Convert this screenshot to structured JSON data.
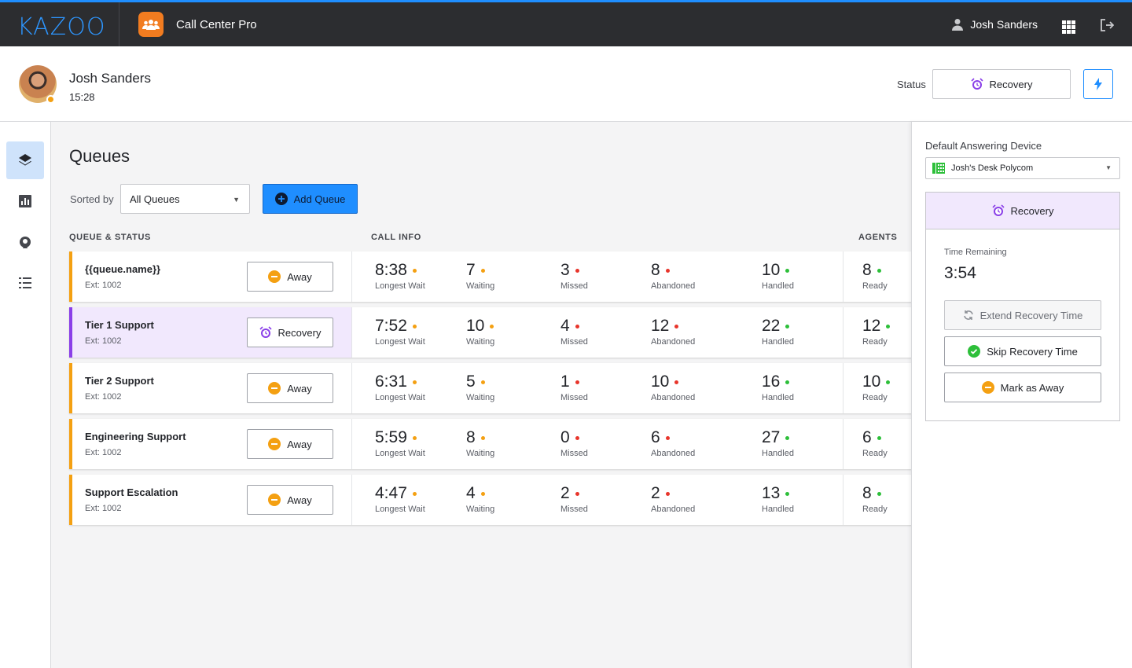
{
  "topbar": {
    "logo": "KAZOO",
    "app_name": "Call Center Pro",
    "user_name": "Josh Sanders"
  },
  "agent": {
    "name": "Josh Sanders",
    "time": "15:28",
    "presence_color": "#f4a012",
    "status_label": "Status",
    "status_value": "Recovery"
  },
  "sidebar": {
    "items": [
      "queues",
      "reports",
      "agents",
      "tasks"
    ]
  },
  "main": {
    "title": "Queues",
    "sorted_by_label": "Sorted by",
    "sort_value": "All Queues",
    "add_queue_label": "Add Queue",
    "columns": {
      "queue_status": "QUEUE & STATUS",
      "call_info": "CALL INFO",
      "agents": "AGENTS"
    },
    "stat_labels": {
      "longest_wait": "Longest Wait",
      "waiting": "Waiting",
      "missed": "Missed",
      "abandoned": "Abandoned",
      "handled": "Handled",
      "ready": "Ready"
    },
    "queues": [
      {
        "name": "{{queue.name}}",
        "ext": "Ext: 1002",
        "status": "Away",
        "longest_wait": "8:38",
        "waiting": "7",
        "missed": "3",
        "abandoned": "8",
        "handled": "10",
        "ready": "8"
      },
      {
        "name": "Tier 1 Support",
        "ext": "Ext: 1002",
        "status": "Recovery",
        "longest_wait": "7:52",
        "waiting": "10",
        "missed": "4",
        "abandoned": "12",
        "handled": "22",
        "ready": "12"
      },
      {
        "name": "Tier 2 Support",
        "ext": "Ext: 1002",
        "status": "Away",
        "longest_wait": "6:31",
        "waiting": "5",
        "missed": "1",
        "abandoned": "10",
        "handled": "16",
        "ready": "10"
      },
      {
        "name": "Engineering Support",
        "ext": "Ext: 1002",
        "status": "Away",
        "longest_wait": "5:59",
        "waiting": "8",
        "missed": "0",
        "abandoned": "6",
        "handled": "27",
        "ready": "6"
      },
      {
        "name": "Support Escalation",
        "ext": "Ext: 1002",
        "status": "Away",
        "longest_wait": "4:47",
        "waiting": "4",
        "missed": "2",
        "abandoned": "2",
        "handled": "13",
        "ready": "8"
      }
    ]
  },
  "panel": {
    "device_label": "Default Answering Device",
    "device_value": "Josh's Desk Polycom",
    "recovery_title": "Recovery",
    "time_remaining_label": "Time Remaining",
    "time_remaining_value": "3:54",
    "extend_label": "Extend Recovery Time",
    "skip_label": "Skip Recovery Time",
    "away_label": "Mark as Away"
  },
  "colors": {
    "accent": "#1f8eff",
    "away": "#f4a012",
    "recovery": "#8a3fe8",
    "missed": "#e8352b",
    "ok": "#2dbf3a"
  }
}
